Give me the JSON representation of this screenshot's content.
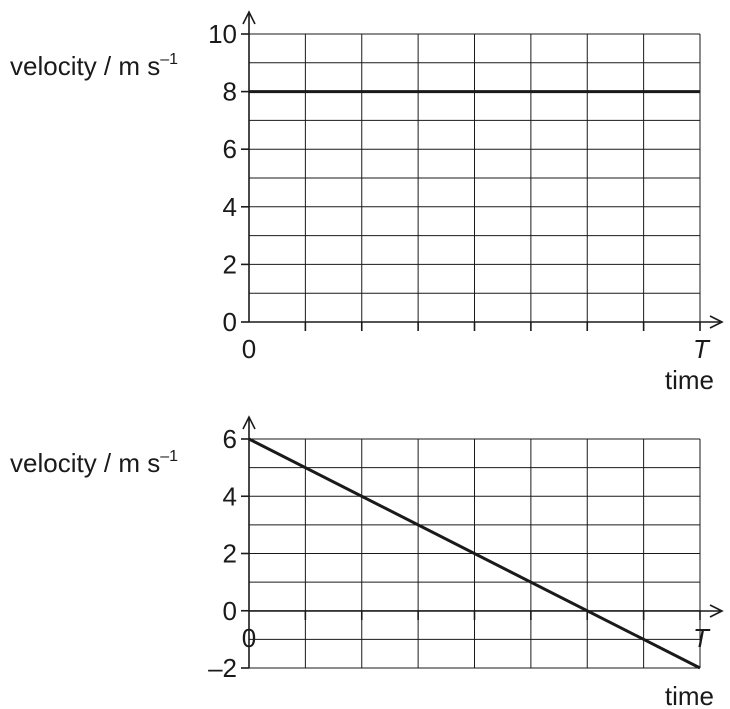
{
  "chart_data": [
    {
      "type": "line",
      "ylabel": "velocity / m s",
      "ylabel_superscript": "–1",
      "xlabel": "time",
      "x_tick_labels": [
        "0",
        "T"
      ],
      "ylim": [
        0,
        10
      ],
      "y_tick_labels": [
        "0",
        "2",
        "4",
        "6",
        "8",
        "10"
      ],
      "x_divisions": 8,
      "grid": true,
      "series": [
        {
          "x": [
            0,
            8
          ],
          "y": [
            8,
            8
          ]
        }
      ]
    },
    {
      "type": "line",
      "ylabel": "velocity / m s",
      "ylabel_superscript": "–1",
      "xlabel": "time",
      "x_tick_labels": [
        "0",
        "T"
      ],
      "ylim": [
        -2,
        6
      ],
      "y_tick_labels": [
        "–2",
        "0",
        "2",
        "4",
        "6"
      ],
      "x_divisions": 8,
      "grid": true,
      "series": [
        {
          "x": [
            0,
            8
          ],
          "y": [
            6,
            -2
          ]
        }
      ]
    }
  ]
}
